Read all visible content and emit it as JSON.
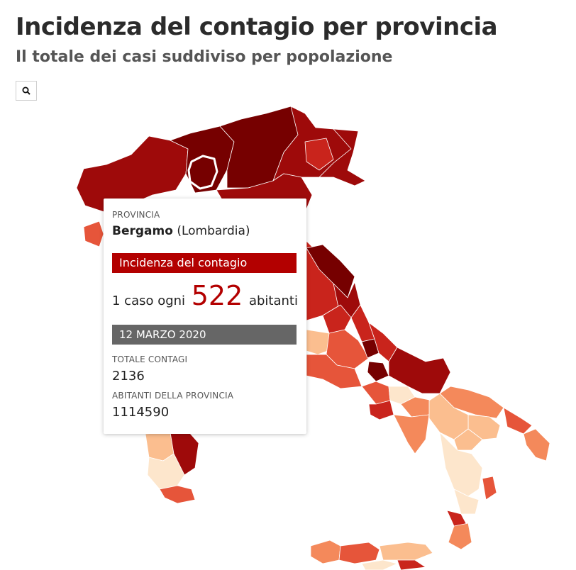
{
  "header": {
    "title": "Incidenza del contagio per provincia",
    "subtitle": "Il totale dei casi suddiviso per popolazione"
  },
  "search": {
    "icon": "search-icon"
  },
  "map": {
    "region": "Italia",
    "color_scale": [
      "#fde6cc",
      "#fbbe8f",
      "#f4895b",
      "#e6553a",
      "#c9241c",
      "#9e0a0a",
      "#760000"
    ],
    "highlighted_province": "Bergamo"
  },
  "tooltip": {
    "label": "PROVINCIA",
    "province": "Bergamo",
    "region": "(Lombardia)",
    "incidence_heading": "Incidenza del contagio",
    "rate_prefix": "1 caso ogni",
    "rate_value": "522",
    "rate_suffix": "abitanti",
    "date": "12 MARZO 2020",
    "total_label": "TOTALE CONTAGI",
    "total_value": "2136",
    "population_label": "ABITANTI DELLA PROVINCIA",
    "population_value": "1114590"
  }
}
